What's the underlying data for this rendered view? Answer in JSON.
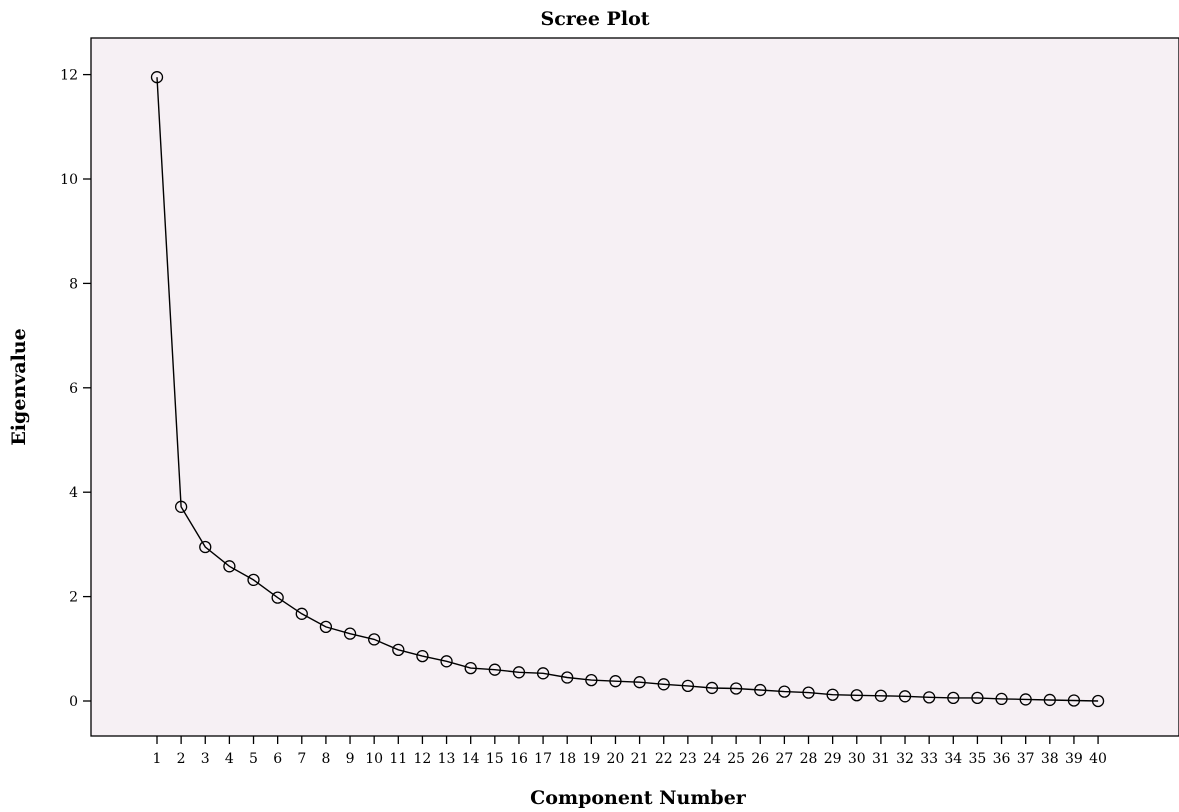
{
  "chart_data": {
    "type": "line",
    "title": "Scree Plot",
    "xlabel": "Component Number",
    "ylabel": "Eigenvalue",
    "x": [
      1,
      2,
      3,
      4,
      5,
      6,
      7,
      8,
      9,
      10,
      11,
      12,
      13,
      14,
      15,
      16,
      17,
      18,
      19,
      20,
      21,
      22,
      23,
      24,
      25,
      26,
      27,
      28,
      29,
      30,
      31,
      32,
      33,
      34,
      35,
      36,
      37,
      38,
      39,
      40
    ],
    "x_tick_labels": [
      "1",
      "2",
      "3",
      "4",
      "5",
      "6",
      "7",
      "8",
      "9",
      "10",
      "11",
      "12",
      "13",
      "14",
      "15",
      "16",
      "17",
      "18",
      "19",
      "20",
      "21",
      "22",
      "23",
      "24",
      "25",
      "26",
      "27",
      "28",
      "29",
      "30",
      "31",
      "32",
      "33",
      "34",
      "35",
      "36",
      "37",
      "38",
      "39",
      "40"
    ],
    "series": [
      {
        "values": [
          11.95,
          3.72,
          2.95,
          2.58,
          2.32,
          1.98,
          1.67,
          1.42,
          1.29,
          1.18,
          0.98,
          0.86,
          0.76,
          0.63,
          0.6,
          0.55,
          0.53,
          0.45,
          0.4,
          0.38,
          0.36,
          0.32,
          0.29,
          0.25,
          0.24,
          0.21,
          0.18,
          0.16,
          0.12,
          0.11,
          0.1,
          0.09,
          0.07,
          0.06,
          0.06,
          0.04,
          0.03,
          0.02,
          0.01,
          0.0
        ]
      }
    ],
    "ylim": [
      -0.6,
      12.7
    ],
    "y_ticks": [
      0,
      2,
      4,
      6,
      8,
      10,
      12
    ],
    "y_tick_labels": [
      "0",
      "2",
      "4",
      "6",
      "8",
      "10",
      "12"
    ],
    "grid": false,
    "plot_background": "#f6f0f4",
    "line_color": "#000000",
    "marker": "open-circle"
  }
}
